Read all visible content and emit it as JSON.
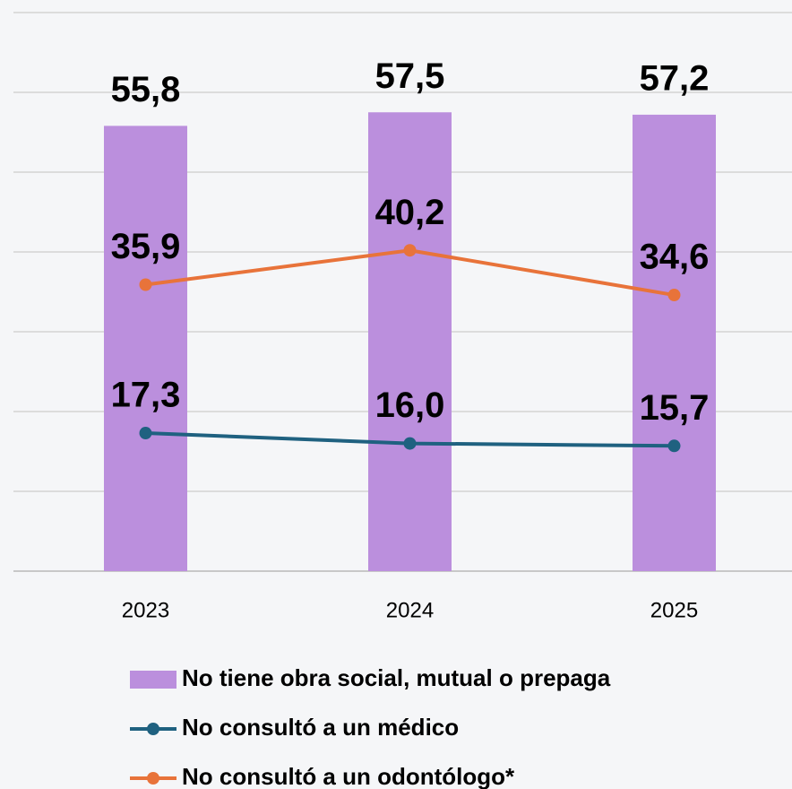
{
  "chart_data": {
    "type": "combo",
    "categories": [
      "2023",
      "2024",
      "2025"
    ],
    "series": [
      {
        "name": "No tiene obra social, mutual o prepaga",
        "type": "bar",
        "color": "#bb8fdd",
        "values": [
          55.8,
          57.5,
          57.2
        ],
        "value_labels": [
          "55,8",
          "57,5",
          "57,2"
        ]
      },
      {
        "name": "No consultó a un médico",
        "type": "line",
        "color": "#1f6180",
        "values": [
          17.3,
          16.0,
          15.7
        ],
        "value_labels": [
          "17,3",
          "16,0",
          "15,7"
        ]
      },
      {
        "name": "No consultó a un odontólogo*",
        "type": "line",
        "color": "#e8733a",
        "values": [
          35.9,
          40.2,
          34.6
        ],
        "value_labels": [
          "35,9",
          "40,2",
          "34,6"
        ]
      }
    ],
    "ylim": [
      0,
      70
    ],
    "yticks": [
      0,
      10,
      20,
      30,
      40,
      50,
      60,
      70
    ],
    "grid": true
  }
}
